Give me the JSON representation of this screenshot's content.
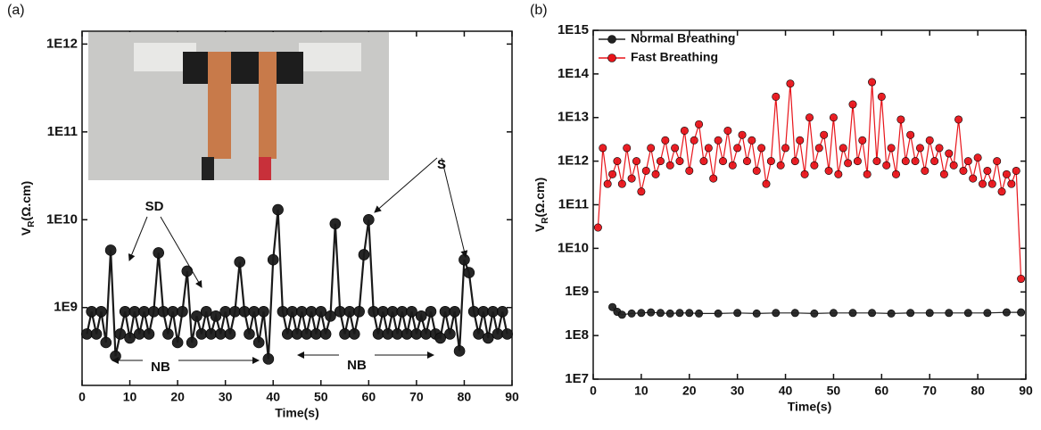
{
  "chart_data": [
    {
      "type": "line",
      "label": "(a)",
      "markers": true,
      "log_y": true,
      "x_label": "Time(s)",
      "y_label": [
        "V",
        "R",
        "(Ω.cm)"
      ],
      "xlim": [
        0,
        90
      ],
      "xticks": [
        0,
        10,
        20,
        30,
        40,
        50,
        60,
        70,
        80,
        90
      ],
      "ylim": [
        130000000,
        1400000000000
      ],
      "yticks": [
        {
          "value": 1000000000,
          "label": "1E9"
        },
        {
          "value": 10000000000,
          "label": "1E10"
        },
        {
          "value": 100000000000,
          "label": "1E11"
        },
        {
          "value": 1000000000000,
          "label": "1E12"
        }
      ],
      "annotations": [
        "SD",
        "S",
        "NB",
        "NB"
      ],
      "series": [
        {
          "color": "#1a1a1a",
          "x": [
            1,
            2,
            3,
            4,
            5,
            6,
            7,
            8,
            9,
            10,
            11,
            12,
            13,
            14,
            15,
            16,
            17,
            18,
            19,
            20,
            21,
            22,
            23,
            24,
            25,
            26,
            27,
            28,
            29,
            30,
            31,
            32,
            33,
            34,
            35,
            36,
            37,
            38,
            39,
            40,
            41,
            42,
            43,
            44,
            45,
            46,
            47,
            48,
            49,
            50,
            51,
            52,
            53,
            54,
            55,
            56,
            57,
            58,
            59,
            60,
            61,
            62,
            63,
            64,
            65,
            66,
            67,
            68,
            69,
            70,
            71,
            72,
            73,
            74,
            75,
            76,
            77,
            78,
            79,
            80,
            81,
            82,
            83,
            84,
            85,
            86,
            87,
            88,
            89
          ],
          "values": [
            500000000.0,
            900000000.0,
            500000000.0,
            900000000.0,
            400000000.0,
            4500000000.0,
            280000000.0,
            500000000.0,
            900000000.0,
            450000000.0,
            900000000.0,
            500000000.0,
            900000000.0,
            500000000.0,
            900000000.0,
            4200000000.0,
            900000000.0,
            500000000.0,
            900000000.0,
            400000000.0,
            900000000.0,
            2600000000.0,
            400000000.0,
            800000000.0,
            500000000.0,
            900000000.0,
            500000000.0,
            800000000.0,
            500000000.0,
            900000000.0,
            500000000.0,
            900000000.0,
            3300000000.0,
            900000000.0,
            500000000.0,
            900000000.0,
            400000000.0,
            900000000.0,
            260000000.0,
            3500000000.0,
            13000000000.0,
            900000000.0,
            500000000.0,
            900000000.0,
            500000000.0,
            900000000.0,
            500000000.0,
            900000000.0,
            500000000.0,
            900000000.0,
            500000000.0,
            800000000.0,
            9000000000.0,
            900000000.0,
            500000000.0,
            900000000.0,
            500000000.0,
            900000000.0,
            4000000000.0,
            10000000000.0,
            900000000.0,
            500000000.0,
            900000000.0,
            500000000.0,
            900000000.0,
            500000000.0,
            900000000.0,
            500000000.0,
            900000000.0,
            500000000.0,
            800000000.0,
            500000000.0,
            900000000.0,
            500000000.0,
            450000000.0,
            900000000.0,
            500000000.0,
            900000000.0,
            320000000.0,
            3500000000.0,
            2500000000.0,
            900000000.0,
            500000000.0,
            900000000.0,
            450000000.0,
            900000000.0,
            500000000.0,
            900000000.0,
            500000000.0
          ]
        }
      ]
    },
    {
      "type": "line",
      "label": "(b)",
      "markers": true,
      "log_y": true,
      "legend": "upper left",
      "x_label": "Time(s)",
      "y_label": [
        "V",
        "R",
        "(Ω.cm)"
      ],
      "xlim": [
        0,
        90
      ],
      "xticks": [
        0,
        10,
        20,
        30,
        40,
        50,
        60,
        70,
        80,
        90
      ],
      "ylim": [
        10000000,
        1000000000000000
      ],
      "yticks": [
        {
          "value": 10000000,
          "label": "1E7"
        },
        {
          "value": 100000000,
          "label": "1E8"
        },
        {
          "value": 1000000000,
          "label": "1E9"
        },
        {
          "value": 10000000000,
          "label": "1E10"
        },
        {
          "value": 100000000000,
          "label": "1E11"
        },
        {
          "value": 1000000000000,
          "label": "1E12"
        },
        {
          "value": 10000000000000,
          "label": "1E13"
        },
        {
          "value": 100000000000000,
          "label": "1E14"
        },
        {
          "value": 1000000000000000,
          "label": "1E15"
        }
      ],
      "series": [
        {
          "name": "Normal Breathing",
          "color": "#222222",
          "x": [
            4,
            5,
            6,
            8,
            10,
            12,
            14,
            16,
            18,
            20,
            22,
            26,
            30,
            34,
            38,
            42,
            46,
            50,
            54,
            58,
            62,
            66,
            70,
            74,
            78,
            82,
            86,
            89
          ],
          "values": [
            450000000.0,
            350000000.0,
            300000000.0,
            320000000.0,
            330000000.0,
            340000000.0,
            330000000.0,
            320000000.0,
            330000000.0,
            330000000.0,
            320000000.0,
            320000000.0,
            330000000.0,
            320000000.0,
            330000000.0,
            330000000.0,
            320000000.0,
            330000000.0,
            330000000.0,
            330000000.0,
            320000000.0,
            330000000.0,
            330000000.0,
            330000000.0,
            330000000.0,
            330000000.0,
            340000000.0,
            340000000.0
          ]
        },
        {
          "name": "Fast Breathing",
          "color": "#e8141a",
          "x": [
            1,
            2,
            3,
            4,
            5,
            6,
            7,
            8,
            9,
            10,
            11,
            12,
            13,
            14,
            15,
            16,
            17,
            18,
            19,
            20,
            21,
            22,
            23,
            24,
            25,
            26,
            27,
            28,
            29,
            30,
            31,
            32,
            33,
            34,
            35,
            36,
            37,
            38,
            39,
            40,
            41,
            42,
            43,
            44,
            45,
            46,
            47,
            48,
            49,
            50,
            51,
            52,
            53,
            54,
            55,
            56,
            57,
            58,
            59,
            60,
            61,
            62,
            63,
            64,
            65,
            66,
            67,
            68,
            69,
            70,
            71,
            72,
            73,
            74,
            75,
            76,
            77,
            78,
            79,
            80,
            81,
            82,
            83,
            84,
            85,
            86,
            87,
            88,
            89
          ],
          "values": [
            30000000000.0,
            2000000000000.0,
            300000000000.0,
            500000000000.0,
            1000000000000.0,
            300000000000.0,
            2000000000000.0,
            400000000000.0,
            1000000000000.0,
            200000000000.0,
            600000000000.0,
            2000000000000.0,
            500000000000.0,
            1000000000000.0,
            3000000000000.0,
            800000000000.0,
            2000000000000.0,
            1000000000000.0,
            5000000000000.0,
            600000000000.0,
            3000000000000.0,
            7000000000000.0,
            1000000000000.0,
            2000000000000.0,
            400000000000.0,
            3000000000000.0,
            1000000000000.0,
            5000000000000.0,
            800000000000.0,
            2000000000000.0,
            4000000000000.0,
            1000000000000.0,
            3000000000000.0,
            600000000000.0,
            2000000000000.0,
            300000000000.0,
            1000000000000.0,
            30000000000000.0,
            800000000000.0,
            2000000000000.0,
            60000000000000.0,
            1000000000000.0,
            3000000000000.0,
            500000000000.0,
            10000000000000.0,
            800000000000.0,
            2000000000000.0,
            4000000000000.0,
            600000000000.0,
            10000000000000.0,
            500000000000.0,
            2000000000000.0,
            900000000000.0,
            20000000000000.0,
            1000000000000.0,
            3000000000000.0,
            500000000000.0,
            65000000000000.0,
            1000000000000.0,
            30000000000000.0,
            800000000000.0,
            2000000000000.0,
            500000000000.0,
            9000000000000.0,
            1000000000000.0,
            4000000000000.0,
            1000000000000.0,
            2000000000000.0,
            600000000000.0,
            3000000000000.0,
            1000000000000.0,
            2000000000000.0,
            500000000000.0,
            1500000000000.0,
            800000000000.0,
            9000000000000.0,
            600000000000.0,
            1000000000000.0,
            400000000000.0,
            1200000000000.0,
            300000000000.0,
            600000000000.0,
            300000000000.0,
            1000000000000.0,
            200000000000.0,
            500000000000.0,
            300000000000.0,
            600000000000.0,
            2000000000.0
          ]
        }
      ]
    }
  ]
}
